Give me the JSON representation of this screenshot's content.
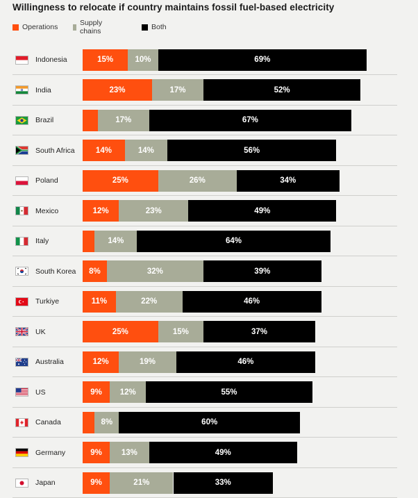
{
  "chart_data": {
    "type": "bar",
    "orientation": "horizontal",
    "stacked": true,
    "title": "Willingness to relocate if country maintains fossil fuel-based electricity",
    "legend": [
      {
        "name": "Operations",
        "color": "#ff4f0f"
      },
      {
        "name": "Supply chains",
        "color": "#a8ac98"
      },
      {
        "name": "Both",
        "color": "#000000"
      }
    ],
    "legend_position": "top-left",
    "xlim": [
      0,
      100
    ],
    "grid": false,
    "categories": [
      "Indonesia",
      "India",
      "Brazil",
      "South Africa",
      "Poland",
      "Mexico",
      "Italy",
      "South Korea",
      "Turkiye",
      "UK",
      "Australia",
      "US",
      "Canada",
      "Germany",
      "Japan"
    ],
    "series": [
      {
        "name": "Operations",
        "values": [
          15,
          23,
          5,
          14,
          25,
          12,
          4,
          8,
          11,
          25,
          12,
          9,
          4,
          9,
          9
        ],
        "labels": [
          "15%",
          "23%",
          "",
          "14%",
          "25%",
          "12%",
          "",
          "8%",
          "11%",
          "25%",
          "12%",
          "9%",
          "",
          "9%",
          "9%"
        ]
      },
      {
        "name": "Supply chains",
        "values": [
          10,
          17,
          17,
          14,
          26,
          23,
          14,
          32,
          22,
          15,
          19,
          12,
          8,
          13,
          21
        ],
        "labels": [
          "10%",
          "17%",
          "17%",
          "14%",
          "26%",
          "23%",
          "14%",
          "32%",
          "22%",
          "15%",
          "19%",
          "12%",
          "8%",
          "13%",
          "21%"
        ]
      },
      {
        "name": "Both",
        "values": [
          69,
          52,
          67,
          56,
          34,
          49,
          64,
          39,
          46,
          37,
          46,
          55,
          60,
          49,
          33
        ],
        "labels": [
          "69%",
          "52%",
          "67%",
          "56%",
          "34%",
          "49%",
          "64%",
          "39%",
          "46%",
          "37%",
          "46%",
          "55%",
          "60%",
          "49%",
          "33%"
        ]
      }
    ],
    "flag_icons": [
      "indonesia-flag-icon",
      "india-flag-icon",
      "brazil-flag-icon",
      "south-africa-flag-icon",
      "poland-flag-icon",
      "mexico-flag-icon",
      "italy-flag-icon",
      "south-korea-flag-icon",
      "turkiye-flag-icon",
      "uk-flag-icon",
      "australia-flag-icon",
      "us-flag-icon",
      "canada-flag-icon",
      "germany-flag-icon",
      "japan-flag-icon"
    ]
  }
}
